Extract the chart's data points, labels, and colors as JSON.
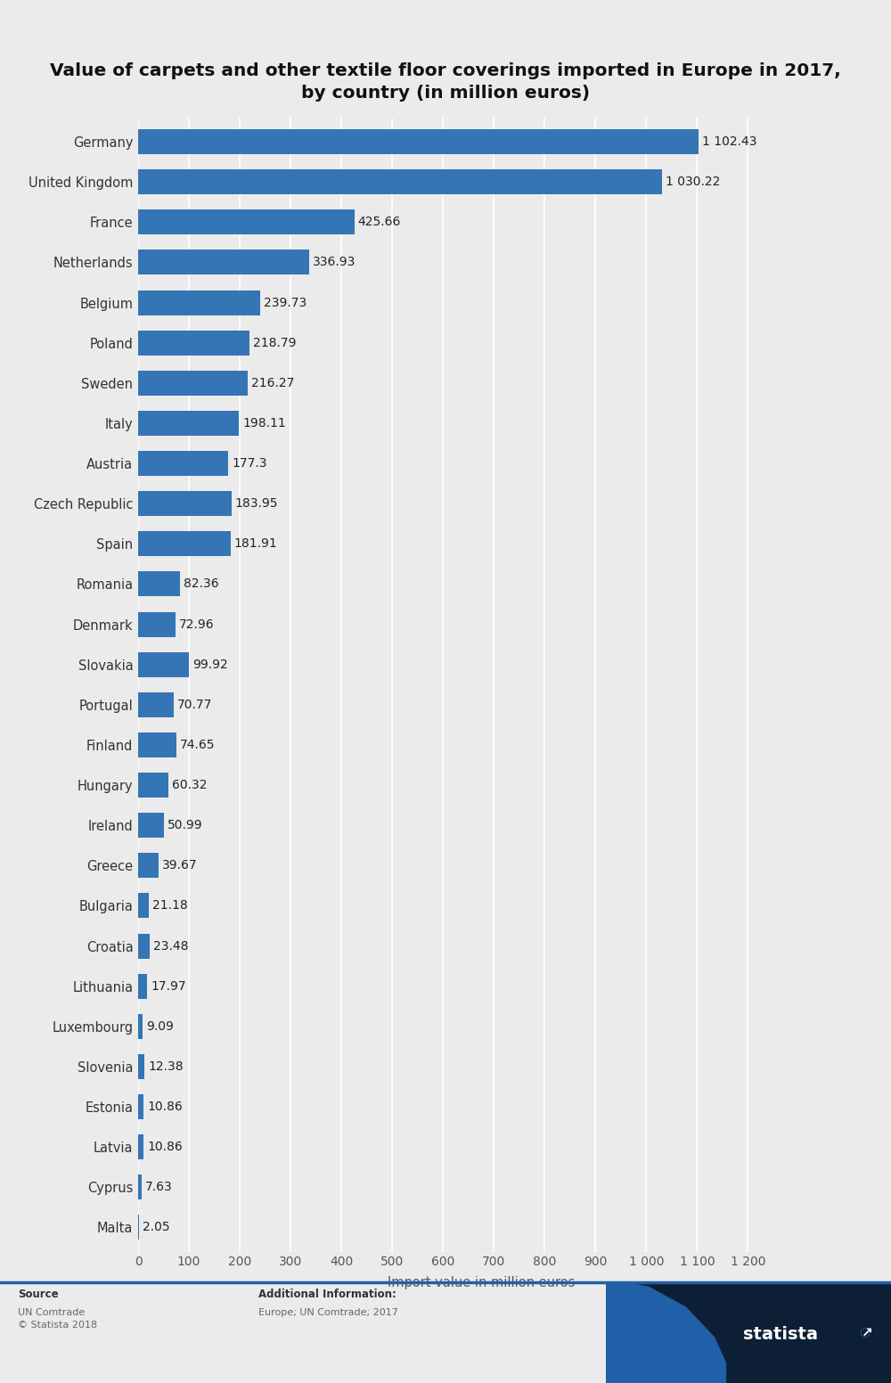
{
  "title": "Value of carpets and other textile floor coverings imported in Europe in 2017,\nby country (in million euros)",
  "countries": [
    "Germany",
    "United Kingdom",
    "France",
    "Netherlands",
    "Belgium",
    "Poland",
    "Sweden",
    "Italy",
    "Austria",
    "Czech Republic",
    "Spain",
    "Romania",
    "Denmark",
    "Slovakia",
    "Portugal",
    "Finland",
    "Hungary",
    "Ireland",
    "Greece",
    "Bulgaria",
    "Croatia",
    "Lithuania",
    "Luxembourg",
    "Slovenia",
    "Estonia",
    "Latvia",
    "Cyprus",
    "Malta"
  ],
  "values": [
    1102.43,
    1030.22,
    425.66,
    336.93,
    239.73,
    218.79,
    216.27,
    198.11,
    177.3,
    183.95,
    181.91,
    82.36,
    72.96,
    99.92,
    70.77,
    74.65,
    60.32,
    50.99,
    39.67,
    21.18,
    23.48,
    17.97,
    9.09,
    12.38,
    10.86,
    10.86,
    7.63,
    2.05
  ],
  "value_labels": [
    "1 102.43",
    "1 030.22",
    "425.66",
    "336.93",
    "239.73",
    "218.79",
    "216.27",
    "198.11",
    "177.3",
    "183.95",
    "181.91",
    "82.36",
    "72.96",
    "99.92",
    "70.77",
    "74.65",
    "60.32",
    "50.99",
    "39.67",
    "21.18",
    "23.48",
    "17.97",
    "9.09",
    "12.38",
    "10.86",
    "10.86",
    "7.63",
    "2.05"
  ],
  "bar_color": "#3575b5",
  "background_color": "#ebebeb",
  "plot_background_color": "#ebebeb",
  "xlabel": "Import value in million euros",
  "xlim": [
    0,
    1350
  ],
  "xticks": [
    0,
    100,
    200,
    300,
    400,
    500,
    600,
    700,
    800,
    900,
    1000,
    1100,
    1200
  ],
  "xtick_labels": [
    "0",
    "100",
    "200",
    "300",
    "400",
    "500",
    "600",
    "700",
    "800",
    "900",
    "1 000",
    "1 100",
    "1 200"
  ],
  "grid_color": "#ffffff",
  "title_fontsize": 14.5,
  "label_fontsize": 10.5,
  "tick_fontsize": 10,
  "value_fontsize": 10,
  "source_text": "Source",
  "source_detail": "UN Comtrade\n© Statista 2018",
  "additional_title": "Additional Information:",
  "additional_detail": "Europe; UN Comtrade; 2017",
  "statista_dark": "#0d1f35",
  "statista_blue": "#2060a8",
  "statista_mid": "#3575b5"
}
